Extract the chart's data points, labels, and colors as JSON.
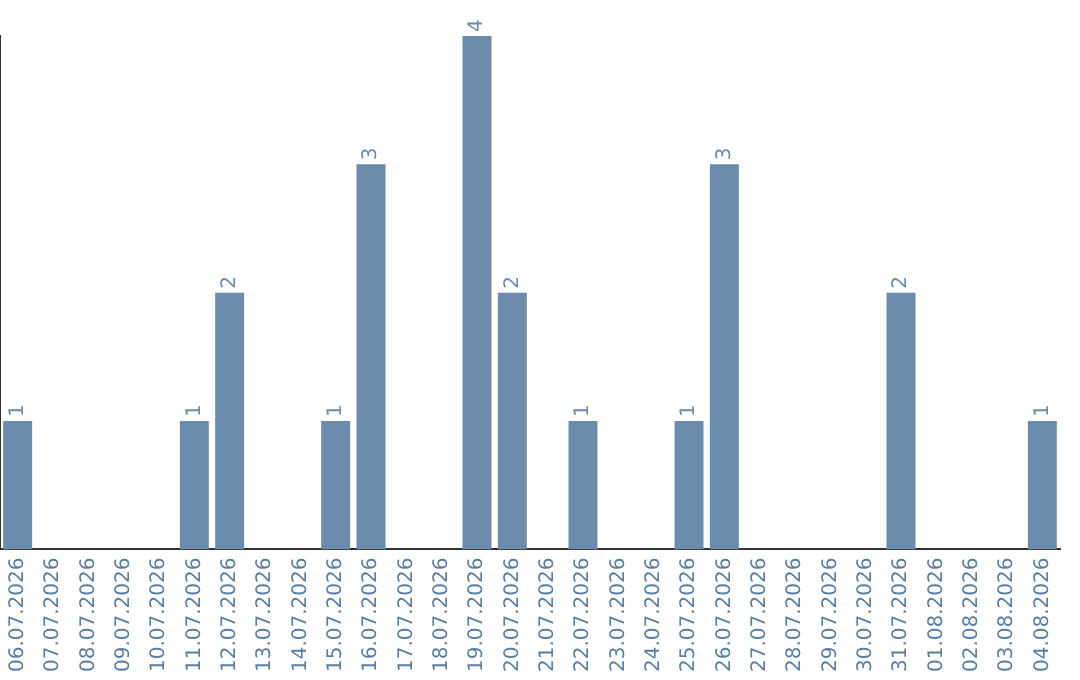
{
  "chart_data": {
    "type": "bar",
    "categories": [
      "06.07.2026",
      "07.07.2026",
      "08.07.2026",
      "09.07.2026",
      "10.07.2026",
      "11.07.2026",
      "12.07.2026",
      "13.07.2026",
      "14.07.2026",
      "15.07.2026",
      "16.07.2026",
      "17.07.2026",
      "18.07.2026",
      "19.07.2026",
      "20.07.2026",
      "21.07.2026",
      "22.07.2026",
      "23.07.2026",
      "24.07.2026",
      "25.07.2026",
      "26.07.2026",
      "27.07.2026",
      "28.07.2026",
      "29.07.2026",
      "30.07.2026",
      "31.07.2026",
      "01.08.2026",
      "02.08.2026",
      "03.08.2026",
      "04.08.2026"
    ],
    "values": [
      1,
      0,
      0,
      0,
      0,
      1,
      2,
      0,
      0,
      1,
      3,
      0,
      0,
      4,
      2,
      0,
      1,
      0,
      0,
      1,
      3,
      0,
      0,
      0,
      0,
      2,
      0,
      0,
      0,
      1
    ],
    "value_labels": [
      "1",
      null,
      null,
      null,
      null,
      "1",
      "2",
      null,
      null,
      "1",
      "3",
      null,
      null,
      "4",
      "2",
      null,
      "1",
      null,
      null,
      "1",
      "3",
      null,
      null,
      null,
      null,
      "2",
      null,
      null,
      null,
      "1"
    ],
    "color": "#6b8cac",
    "tick_labels": "x",
    "grid": false,
    "legend": false
  }
}
